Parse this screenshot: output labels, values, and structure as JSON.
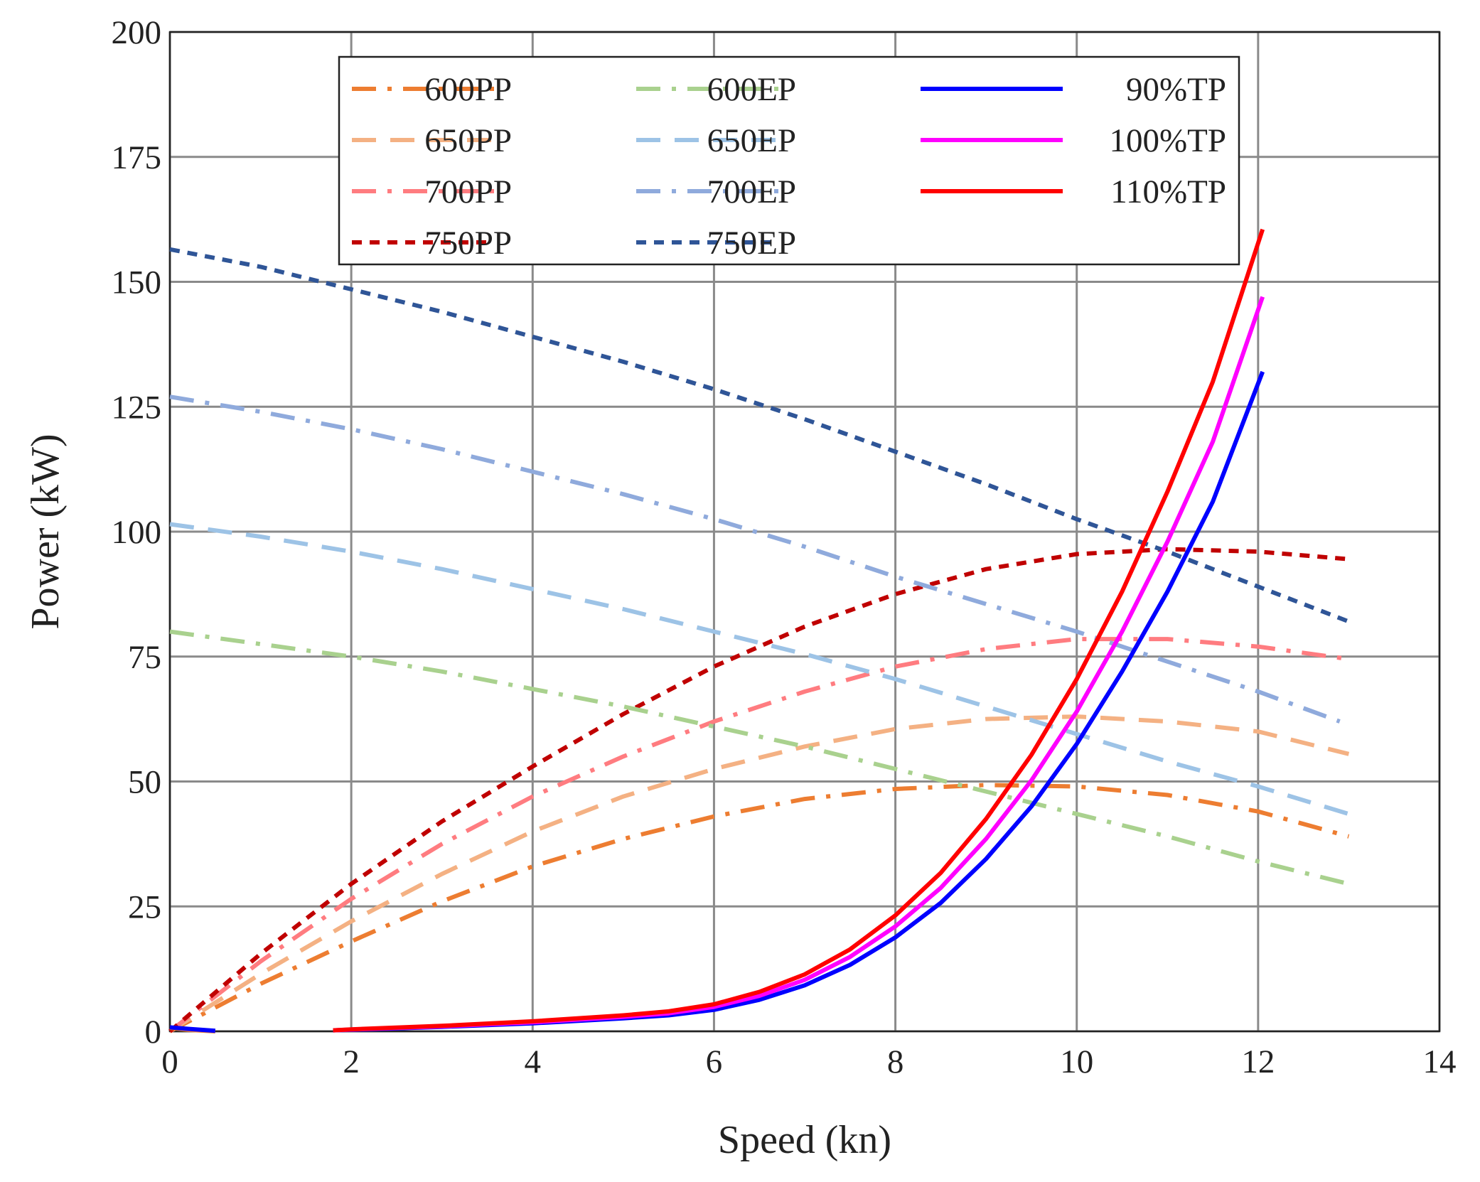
{
  "chart_data": {
    "type": "line",
    "title": "",
    "xlabel": "Speed (kn)",
    "ylabel": "Power (kW)",
    "xlim": [
      0,
      14
    ],
    "ylim": [
      0,
      200
    ],
    "xticks": [
      "0",
      "2",
      "4",
      "6",
      "8",
      "10",
      "12",
      "14"
    ],
    "yticks": [
      "0",
      "25",
      "50",
      "75",
      "100",
      "125",
      "150",
      "175",
      "200"
    ],
    "xtick_values": [
      0,
      2,
      4,
      6,
      8,
      10,
      12,
      14
    ],
    "ytick_values": [
      0,
      25,
      50,
      75,
      100,
      125,
      150,
      175,
      200
    ],
    "grid": true,
    "legend_position": "top-center",
    "series": [
      {
        "name": "600PP",
        "color": "#ed7d31",
        "dash": "dashdot",
        "x": [
          0,
          1,
          2,
          3,
          4,
          5,
          6,
          7,
          8,
          9,
          10,
          11,
          12,
          13
        ],
        "y": [
          0,
          9.5,
          18,
          26,
          33,
          38.5,
          43,
          46.5,
          48.5,
          49.3,
          49,
          47.3,
          44,
          39
        ]
      },
      {
        "name": "650PP",
        "color": "#f4b183",
        "dash": "dash",
        "x": [
          0,
          1,
          2,
          3,
          4,
          5,
          6,
          7,
          8,
          9,
          10,
          11,
          12,
          13
        ],
        "y": [
          0,
          11.5,
          22,
          31.5,
          40,
          47,
          52.5,
          57,
          60.5,
          62.5,
          63,
          62,
          60,
          55.5
        ]
      },
      {
        "name": "700PP",
        "color": "#ff7c80",
        "dash": "dashdot",
        "x": [
          0,
          1,
          2,
          3,
          4,
          5,
          6,
          7,
          8,
          9,
          10,
          11,
          12,
          13
        ],
        "y": [
          0,
          14,
          26.5,
          37.5,
          47,
          55,
          62,
          68,
          73,
          76.5,
          78.5,
          78.5,
          77,
          74.5
        ]
      },
      {
        "name": "750PP",
        "color": "#c00000",
        "dash": "shortdash",
        "x": [
          0,
          1,
          2,
          3,
          4,
          5,
          6,
          7,
          8,
          9,
          10,
          11,
          12,
          13
        ],
        "y": [
          0,
          15.5,
          29.5,
          42,
          53,
          63.5,
          73,
          81,
          87.5,
          92.5,
          95.5,
          96.5,
          96,
          94.5
        ]
      },
      {
        "name": "600EP",
        "color": "#a9d18e",
        "dash": "dashdot",
        "x": [
          0,
          1,
          2,
          3,
          4,
          5,
          6,
          7,
          8,
          9,
          10,
          11,
          12,
          13
        ],
        "y": [
          80,
          77.5,
          75,
          72,
          68.5,
          65,
          61,
          57,
          52.5,
          48,
          43.5,
          39,
          34,
          29.5
        ]
      },
      {
        "name": "650EP",
        "color": "#9dc3e6",
        "dash": "dash",
        "x": [
          0,
          1,
          2,
          3,
          4,
          5,
          6,
          7,
          8,
          9,
          10,
          11,
          12,
          13
        ],
        "y": [
          101.5,
          99,
          96,
          92.5,
          88.5,
          84.5,
          80,
          75.5,
          70.5,
          65,
          59.5,
          54,
          49,
          43.5
        ]
      },
      {
        "name": "700EP",
        "color": "#8faadc",
        "dash": "dashdot",
        "x": [
          0,
          1,
          2,
          3,
          4,
          5,
          6,
          7,
          8,
          9,
          10,
          11,
          12,
          12.9
        ],
        "y": [
          127,
          124,
          120.5,
          116.5,
          112,
          107.5,
          102.5,
          97,
          91,
          85.5,
          80,
          74,
          68,
          62
        ]
      },
      {
        "name": "750EP",
        "color": "#2f5597",
        "dash": "shortdash",
        "x": [
          0,
          1,
          2,
          3,
          4,
          5,
          6,
          7,
          8,
          9,
          10,
          11,
          12,
          13
        ],
        "y": [
          156.5,
          153,
          148.5,
          144,
          139,
          134,
          128.5,
          122.5,
          116,
          109.5,
          102.5,
          96,
          89,
          82
        ]
      },
      {
        "name": "90%TP",
        "color": "#0000ff",
        "dash": "solid",
        "x": [
          1.8,
          2,
          3,
          4,
          5,
          5.5,
          6,
          6.5,
          7,
          7.5,
          8,
          8.5,
          9,
          9.5,
          10,
          10.5,
          11,
          11.5,
          12.05
        ],
        "y": [
          0.2,
          0.3,
          0.9,
          1.6,
          2.6,
          3.2,
          4.3,
          6.3,
          9.2,
          13.3,
          18.8,
          25.7,
          34.5,
          45,
          57.5,
          72,
          88,
          106,
          132
        ]
      },
      {
        "name": "100%TP",
        "color": "#ff00ff",
        "dash": "solid",
        "x": [
          1.8,
          2,
          3,
          4,
          5,
          5.5,
          6,
          6.5,
          7,
          7.5,
          8,
          8.5,
          9,
          9.5,
          10,
          10.5,
          11,
          11.5,
          12.05
        ],
        "y": [
          0.2,
          0.35,
          1,
          1.8,
          2.9,
          3.6,
          4.9,
          7.1,
          10.3,
          14.9,
          21,
          28.7,
          38.5,
          50.2,
          64,
          80,
          98,
          118,
          147
        ]
      },
      {
        "name": "110%TP",
        "color": "#ff0000",
        "dash": "solid",
        "x": [
          1.8,
          2,
          3,
          4,
          5,
          5.5,
          6,
          6.5,
          7,
          7.5,
          8,
          8.5,
          9,
          9.5,
          10,
          10.5,
          11,
          11.5,
          12.05
        ],
        "y": [
          0.2,
          0.4,
          1.1,
          2,
          3.2,
          4,
          5.4,
          7.9,
          11.4,
          16.4,
          23.2,
          31.7,
          42.5,
          55.3,
          70.5,
          88,
          108,
          130,
          160.5
        ]
      }
    ],
    "annotations": [
      {
        "series": "600PP",
        "x": [
          0,
          0.2,
          0.5
        ],
        "y": [
          0.7,
          0.3,
          0
        ]
      },
      {
        "series": "90%TP",
        "x": [
          0,
          0.2,
          0.5
        ],
        "y": [
          0.8,
          0.5,
          0.1
        ]
      }
    ]
  }
}
